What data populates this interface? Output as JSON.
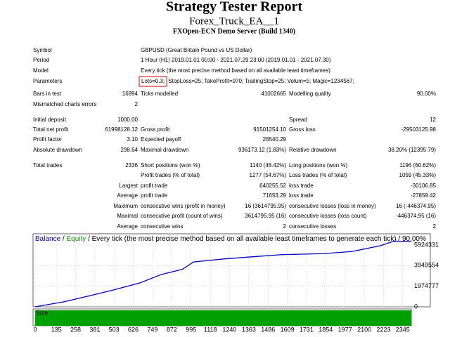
{
  "header": {
    "title": "Strategy Tester Report",
    "subtitle": "Forex_Truck_EA__1",
    "server": "FXOpen-ECN Demo Server (Build 1340)"
  },
  "info": [
    {
      "label": "Symbol",
      "value": "GBPUSD (Great Britain Pound vs US Dollar)"
    },
    {
      "label": "Period",
      "value": "1 Hour (H1) 2019.01.01 00:00 - 2021.07.29 23:00 (2019.01.01 - 2021.07.30)"
    },
    {
      "label": "Model",
      "value": "Every tick (the most precise method based on all available least timeframes)"
    }
  ],
  "parameters": {
    "label": "Parameters",
    "highlighted": "Lots=0.3;",
    "rest": "StopLoss=25; TakeProfit=970; TrailingStop=25; Volum=5; Magic=1234567;"
  },
  "stats": [
    [
      "Bars in test",
      "16994",
      "Ticks modelled",
      "41002665",
      "Modelling quality",
      "90.00%"
    ],
    [
      "Mismatched charts errors",
      "2"
    ],
    [
      "Initial deposit",
      "1000.00",
      "Spread",
      "12"
    ],
    [
      "Total net profit",
      "61998128.12",
      "Gross profit",
      "91501254.10",
      "Gross loss",
      "-29503125.98"
    ],
    [
      "Profit factor",
      "3.10",
      "Expected payoff",
      "26540.29"
    ],
    [
      "Absolute drawdown",
      "298.64",
      "Maximal drawdown",
      "936173.12 (1.83%)",
      "Relative drawdown",
      "38.20% (12395.79)"
    ],
    [
      "Total trades",
      "2336",
      "Short positions (won %)",
      "1140 (48.42%)",
      "Long positions (won %)",
      "1196 (60.62%)"
    ],
    [
      "Profit trades (% of total)",
      "1277 (54.67%)",
      "Loss trades (% of total)",
      "1059 (45.33%)"
    ],
    [
      "Largest",
      "profit trade",
      "640255.52",
      "loss trade",
      "-30106.85"
    ],
    [
      "Average",
      "profit trade",
      "71653.29",
      "loss trade",
      "-27859.42"
    ],
    [
      "Maximum",
      "consecutive wins (profit in money)",
      "16 (3614795.95)",
      "consecutive losses (loss in money)",
      "16 (-446374.95)"
    ],
    [
      "Maximal",
      "consecutive profit (count of wins)",
      "3614795.95 (16)",
      "consecutive losses (loss count)",
      "-446374.95 (16)"
    ],
    [
      "Average",
      "consecutive wins",
      "2",
      "consecutive losses",
      "2"
    ]
  ],
  "graph": {
    "legend": {
      "balance": "Balance",
      "separator": "/",
      "equity": "Equity",
      "description": "/ Every tick (the most precise method based on all available least timeframes to generate each tick) / 90.00%"
    },
    "x": [
      0,
      180,
      360,
      495,
      670,
      805,
      940,
      1010,
      1210,
      1390,
      1570,
      1840,
      2020,
      2200,
      2290,
      2400
    ],
    "balance": [
      0,
      470000,
      1100000,
      1600000,
      2300000,
      3100000,
      3600000,
      4300000,
      4600000,
      4800000,
      5000000,
      5100000,
      5300000,
      5850000,
      6300000,
      6250000
    ],
    "xlim": [
      0,
      2400
    ],
    "ylim": [
      0,
      6530000
    ],
    "xticks": [
      0,
      135,
      258,
      381,
      503,
      626,
      749,
      872,
      995,
      1118,
      1240,
      1363,
      1486,
      1609,
      1731,
      1854,
      1977,
      2100,
      2223,
      2345
    ],
    "yticks": [
      0,
      1974777,
      3949554,
      5924331
    ],
    "size_label": "Size"
  }
}
